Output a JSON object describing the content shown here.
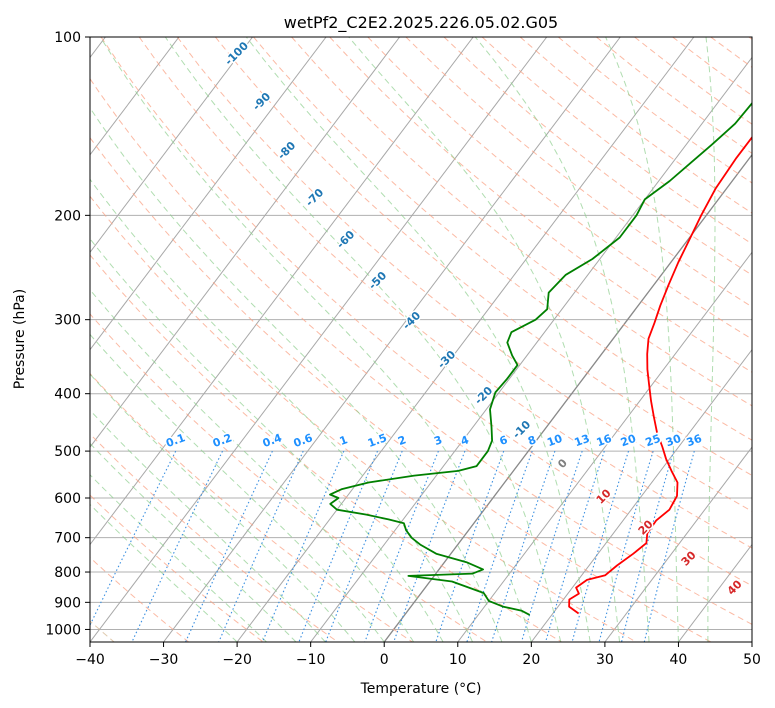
{
  "chart_data": {
    "type": "line",
    "title": "wetPf2_C2E2.2025.226.05.02.G05",
    "xlabel": "Temperature (°C)",
    "ylabel": "Pressure (hPa)",
    "xlim": [
      -40,
      50
    ],
    "ylim": [
      1050,
      100
    ],
    "y_scale": "log",
    "grid": true,
    "x_ticks": [
      -40,
      -30,
      -20,
      -10,
      0,
      10,
      20,
      30,
      40,
      50
    ],
    "y_ticks": [
      100,
      200,
      300,
      400,
      500,
      600,
      700,
      800,
      900,
      1000
    ],
    "series": [
      {
        "color": "#ff0000",
        "points": [
          [
            23.5,
            940
          ],
          [
            21.5,
            915
          ],
          [
            20.8,
            890
          ],
          [
            21.5,
            870
          ],
          [
            20.5,
            850
          ],
          [
            21.2,
            825
          ],
          [
            23.2,
            810
          ],
          [
            23.8,
            780
          ],
          [
            24.8,
            745
          ],
          [
            25.5,
            715
          ],
          [
            24.6,
            688
          ],
          [
            24.5,
            655
          ],
          [
            25.2,
            628
          ],
          [
            24.8,
            595
          ],
          [
            23.5,
            565
          ],
          [
            21.5,
            540
          ],
          [
            19.5,
            515
          ],
          [
            17.8,
            492
          ],
          [
            15.5,
            464
          ],
          [
            13.5,
            437
          ],
          [
            11.5,
            411
          ],
          [
            9.5,
            385
          ],
          [
            7.8,
            364
          ],
          [
            6.2,
            343
          ],
          [
            4.8,
            323
          ],
          [
            4.0,
            304
          ],
          [
            3.0,
            284
          ],
          [
            2.0,
            262
          ],
          [
            1.0,
            240
          ],
          [
            0.2,
            220
          ],
          [
            -0.7,
            200
          ],
          [
            -1.5,
            180
          ],
          [
            -1.8,
            160
          ],
          [
            -1.8,
            145
          ],
          [
            -0.8,
            133
          ],
          [
            -0.5,
            122
          ],
          [
            0.5,
            111
          ],
          [
            2.5,
            100
          ]
        ]
      },
      {
        "color": "#008000",
        "points": [
          [
            17.0,
            945
          ],
          [
            15.5,
            930
          ],
          [
            12.5,
            915
          ],
          [
            10.0,
            895
          ],
          [
            8.5,
            868
          ],
          [
            3.0,
            830
          ],
          [
            -3.5,
            812
          ],
          [
            5.0,
            805
          ],
          [
            6.0,
            792
          ],
          [
            3.0,
            770
          ],
          [
            -2.0,
            745
          ],
          [
            -5.0,
            720
          ],
          [
            -7.0,
            700
          ],
          [
            -8.5,
            680
          ],
          [
            -9.5,
            662
          ],
          [
            -12.0,
            652
          ],
          [
            -15.5,
            640
          ],
          [
            -20.0,
            628
          ],
          [
            -21.5,
            614
          ],
          [
            -21.0,
            600
          ],
          [
            -22.5,
            592
          ],
          [
            -21.5,
            580
          ],
          [
            -18.5,
            565
          ],
          [
            -13.0,
            550
          ],
          [
            -7.5,
            540
          ],
          [
            -5.5,
            530
          ],
          [
            -5.5,
            500
          ],
          [
            -6.0,
            480
          ],
          [
            -7.5,
            455
          ],
          [
            -9.5,
            425
          ],
          [
            -10.5,
            398
          ],
          [
            -10.3,
            378
          ],
          [
            -10.3,
            358
          ],
          [
            -12.0,
            345
          ],
          [
            -14.0,
            328
          ],
          [
            -14.5,
            315
          ],
          [
            -12.5,
            300
          ],
          [
            -12.0,
            288
          ],
          [
            -13.5,
            270
          ],
          [
            -13.0,
            252
          ],
          [
            -11.0,
            237
          ],
          [
            -9.5,
            218
          ],
          [
            -9.5,
            200
          ],
          [
            -10.0,
            188
          ],
          [
            -8.5,
            175
          ],
          [
            -7.5,
            163
          ],
          [
            -6.5,
            152
          ],
          [
            -5.5,
            140
          ],
          [
            -5.2,
            125
          ],
          [
            -4.0,
            115
          ],
          [
            -2.0,
            108
          ],
          [
            -1.0,
            100
          ]
        ]
      }
    ],
    "dry_adiabat_labels": [
      "-100",
      "-90",
      "-80",
      "-70",
      "-60",
      "-50",
      "-40",
      "-30",
      "-20",
      "-10",
      "0",
      "10",
      "20",
      "30",
      "40"
    ],
    "mixing_ratio_labels": [
      "0.1",
      "0.2",
      "0.4",
      "0.6",
      "1",
      "1.5",
      "2",
      "3",
      "4",
      "6",
      "8",
      "10",
      "13",
      "16",
      "20",
      "25",
      "30",
      "36"
    ]
  }
}
